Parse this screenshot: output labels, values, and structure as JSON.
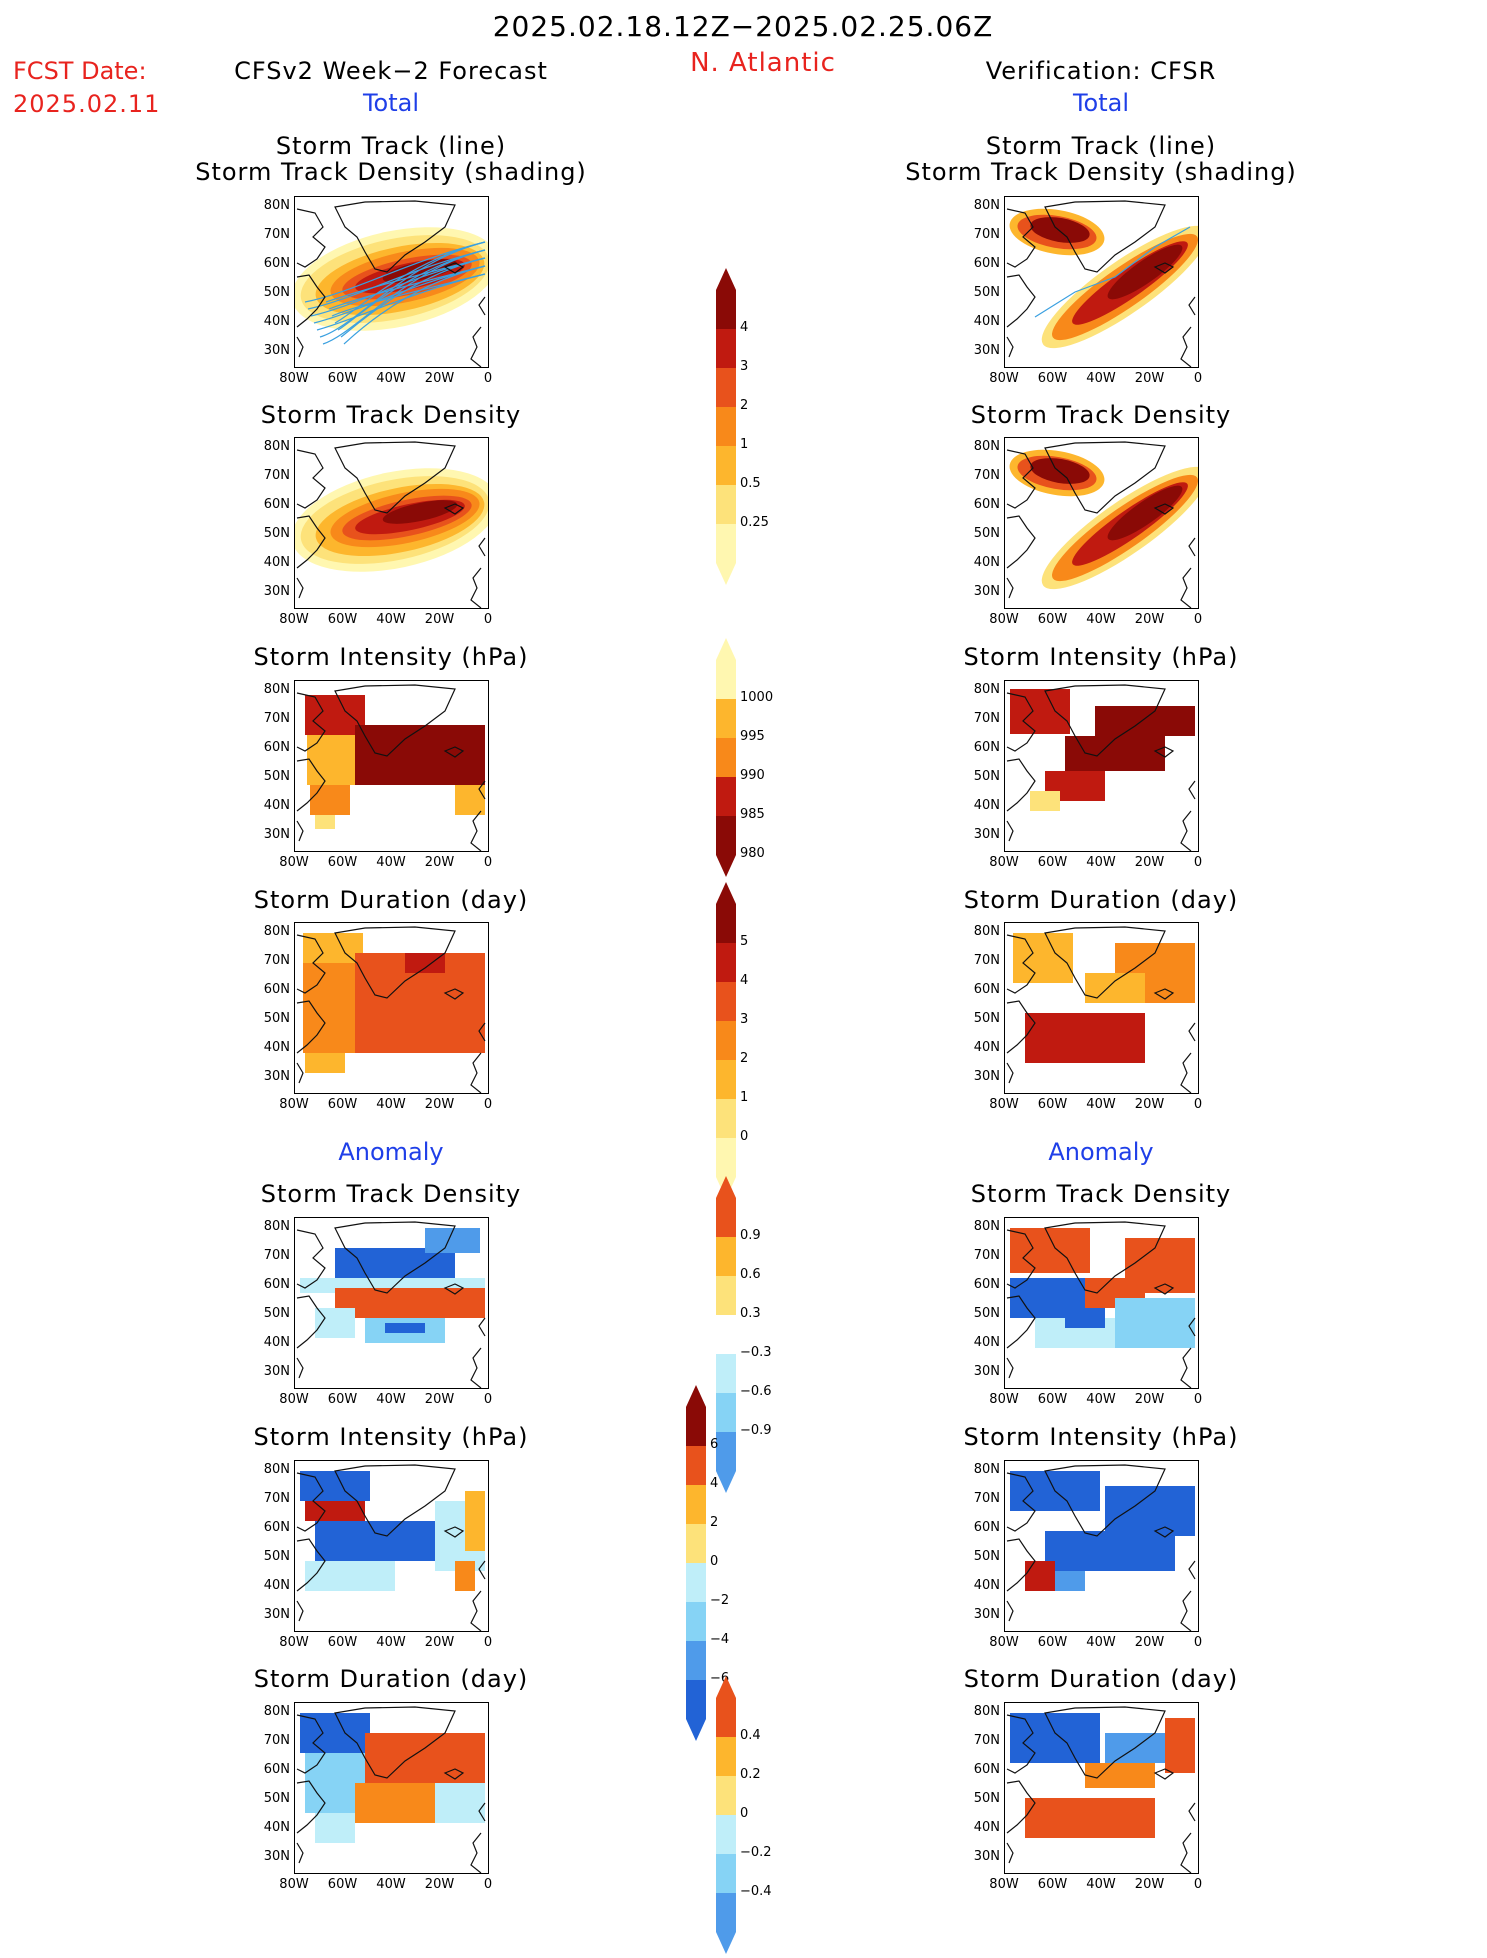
{
  "header": {
    "date_range": "2025.02.18.12Z−2025.02.25.06Z",
    "fcst_date_label": "FCST Date:",
    "fcst_date": "2025.02.11",
    "region": "N. Atlantic",
    "left_title": "CFSv2 Week−2 Forecast",
    "right_title": "Verification: CFSR",
    "left_section": "Total",
    "right_section": "Total",
    "anomaly_left": "Anomaly",
    "anomaly_right": "Anomaly"
  },
  "panel_titles": {
    "track_line": "Storm Track (line)",
    "track_shading": "Storm Track Density (shading)",
    "density": "Storm Track Density",
    "intensity": "Storm Intensity (hPa)",
    "duration": "Storm Duration (day)"
  },
  "axes": {
    "lat_ticks": [
      "80N",
      "70N",
      "60N",
      "50N",
      "40N",
      "30N"
    ],
    "lon_ticks": [
      "80W",
      "60W",
      "40W",
      "20W",
      "0"
    ]
  },
  "colorbars": {
    "density": [
      "4",
      "3",
      "2",
      "1",
      "0.5",
      "0.25"
    ],
    "intensity": [
      "1000",
      "995",
      "990",
      "985",
      "980"
    ],
    "duration": [
      "5",
      "4",
      "3",
      "2",
      "1",
      "0"
    ],
    "density_anom": [
      "0.9",
      "0.6",
      "0.3",
      "−0.3",
      "−0.6",
      "−0.9"
    ],
    "intensity_anom": [
      "6",
      "4",
      "2",
      "0",
      "−2",
      "−4",
      "−6"
    ],
    "duration_anom": [
      "0.4",
      "0.2",
      "0",
      "−0.2",
      "−0.4"
    ]
  },
  "colors": {
    "warm": [
      "#fff7b0",
      "#fde27a",
      "#fdb62d",
      "#f8891a",
      "#e8521c",
      "#c01a10",
      "#8a0a06"
    ],
    "cool": [
      "#bfeef9",
      "#86d3f5",
      "#4f9bea",
      "#2263d6",
      "#0d3fb8"
    ],
    "track_line": "#3aa0e0"
  }
}
